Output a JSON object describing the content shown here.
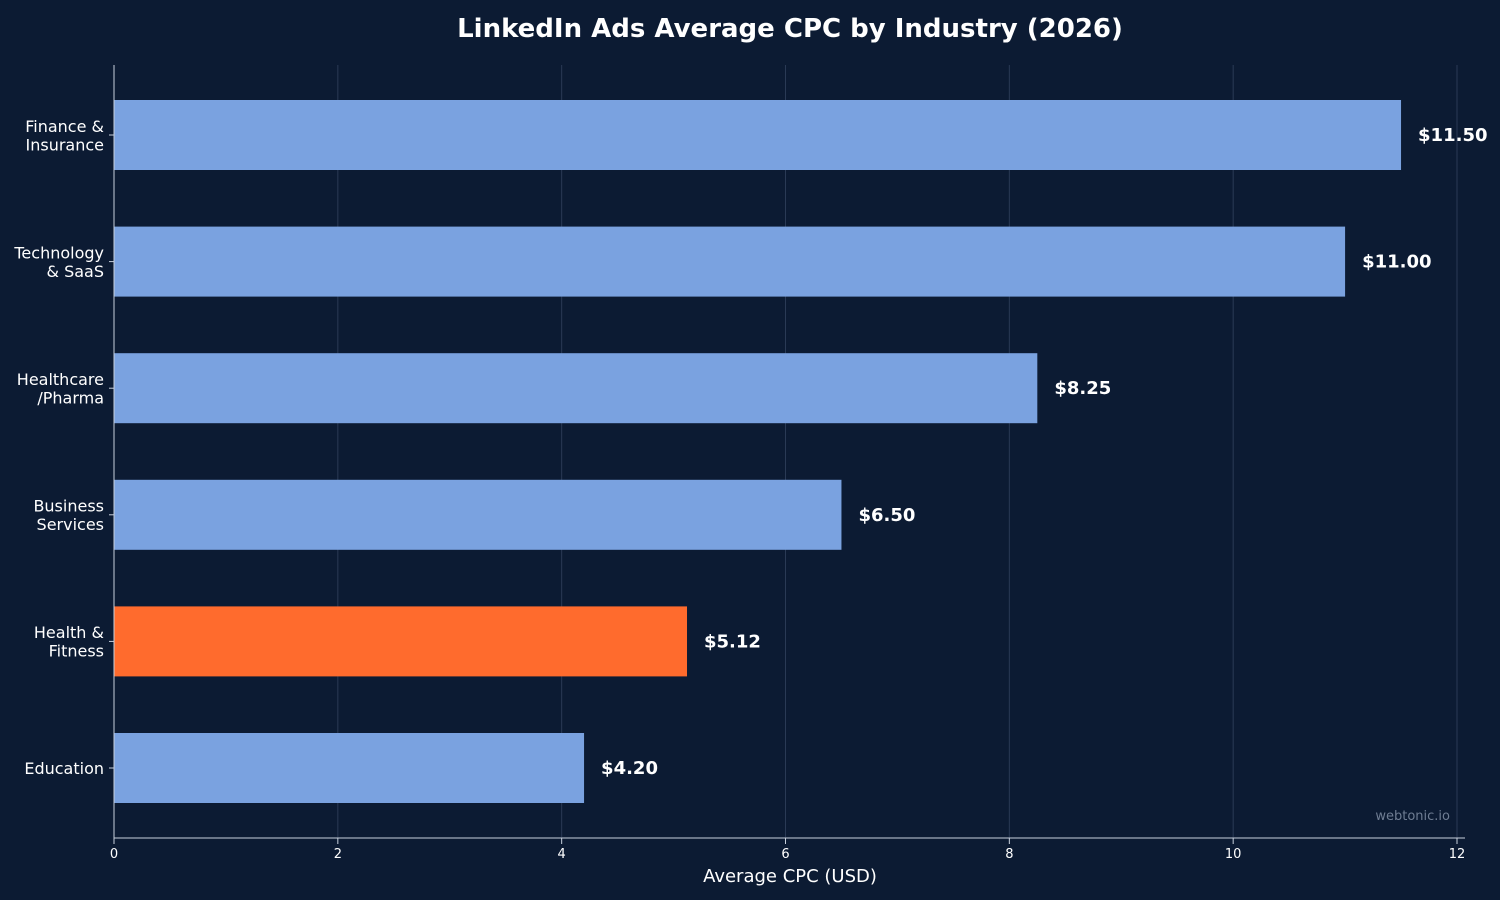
{
  "chart_data": {
    "type": "bar",
    "orientation": "horizontal",
    "title": "LinkedIn Ads Average CPC by Industry (2026)",
    "xlabel": "Average CPC (USD)",
    "ylabel": "",
    "xlim": [
      0,
      12
    ],
    "x_ticks": [
      0,
      2,
      4,
      6,
      8,
      10,
      12
    ],
    "grid": true,
    "categories": [
      [
        "Finance &",
        "Insurance"
      ],
      [
        "Technology",
        "& SaaS"
      ],
      [
        "Healthcare",
        "/Pharma"
      ],
      [
        "Business",
        "Services"
      ],
      [
        "Health &",
        "Fitness"
      ],
      [
        "Education"
      ]
    ],
    "values": [
      11.5,
      11.0,
      8.25,
      6.5,
      5.12,
      4.2
    ],
    "value_labels": [
      "$11.50",
      "$11.00",
      "$8.25",
      "$6.50",
      "$5.12",
      "$4.20"
    ],
    "highlight_index": 4
  },
  "watermark": "webtonic.io",
  "colors": {
    "background": "#0c1b33",
    "bar": "#7aa2e0",
    "highlight": "#ff6b2d",
    "text": "#ffffff",
    "axis": "#c8d0dc",
    "grid": "#2a3a55",
    "watermark": "#6f7d93"
  }
}
